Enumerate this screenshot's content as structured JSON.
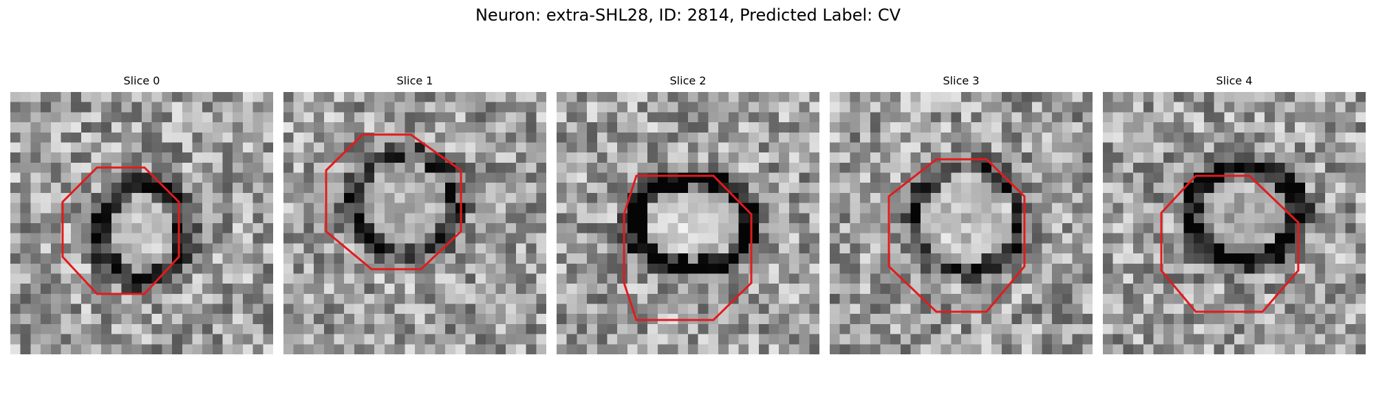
{
  "figure": {
    "title": "Neuron: extra-SHL28, ID: 2814, Predicted Label: CV"
  },
  "panels": [
    {
      "title": "Slice 0",
      "marker_color": "#e31a1c",
      "marker_shape": "octagon"
    },
    {
      "title": "Slice 1",
      "marker_color": "#e31a1c",
      "marker_shape": "octagon"
    },
    {
      "title": "Slice 2",
      "marker_color": "#e31a1c",
      "marker_shape": "octagon"
    },
    {
      "title": "Slice 3",
      "marker_color": "#e31a1c",
      "marker_shape": "octagon"
    },
    {
      "title": "Slice 4",
      "marker_color": "#e31a1c",
      "marker_shape": "octagon"
    }
  ],
  "image_style": {
    "colormap": "grayscale"
  }
}
